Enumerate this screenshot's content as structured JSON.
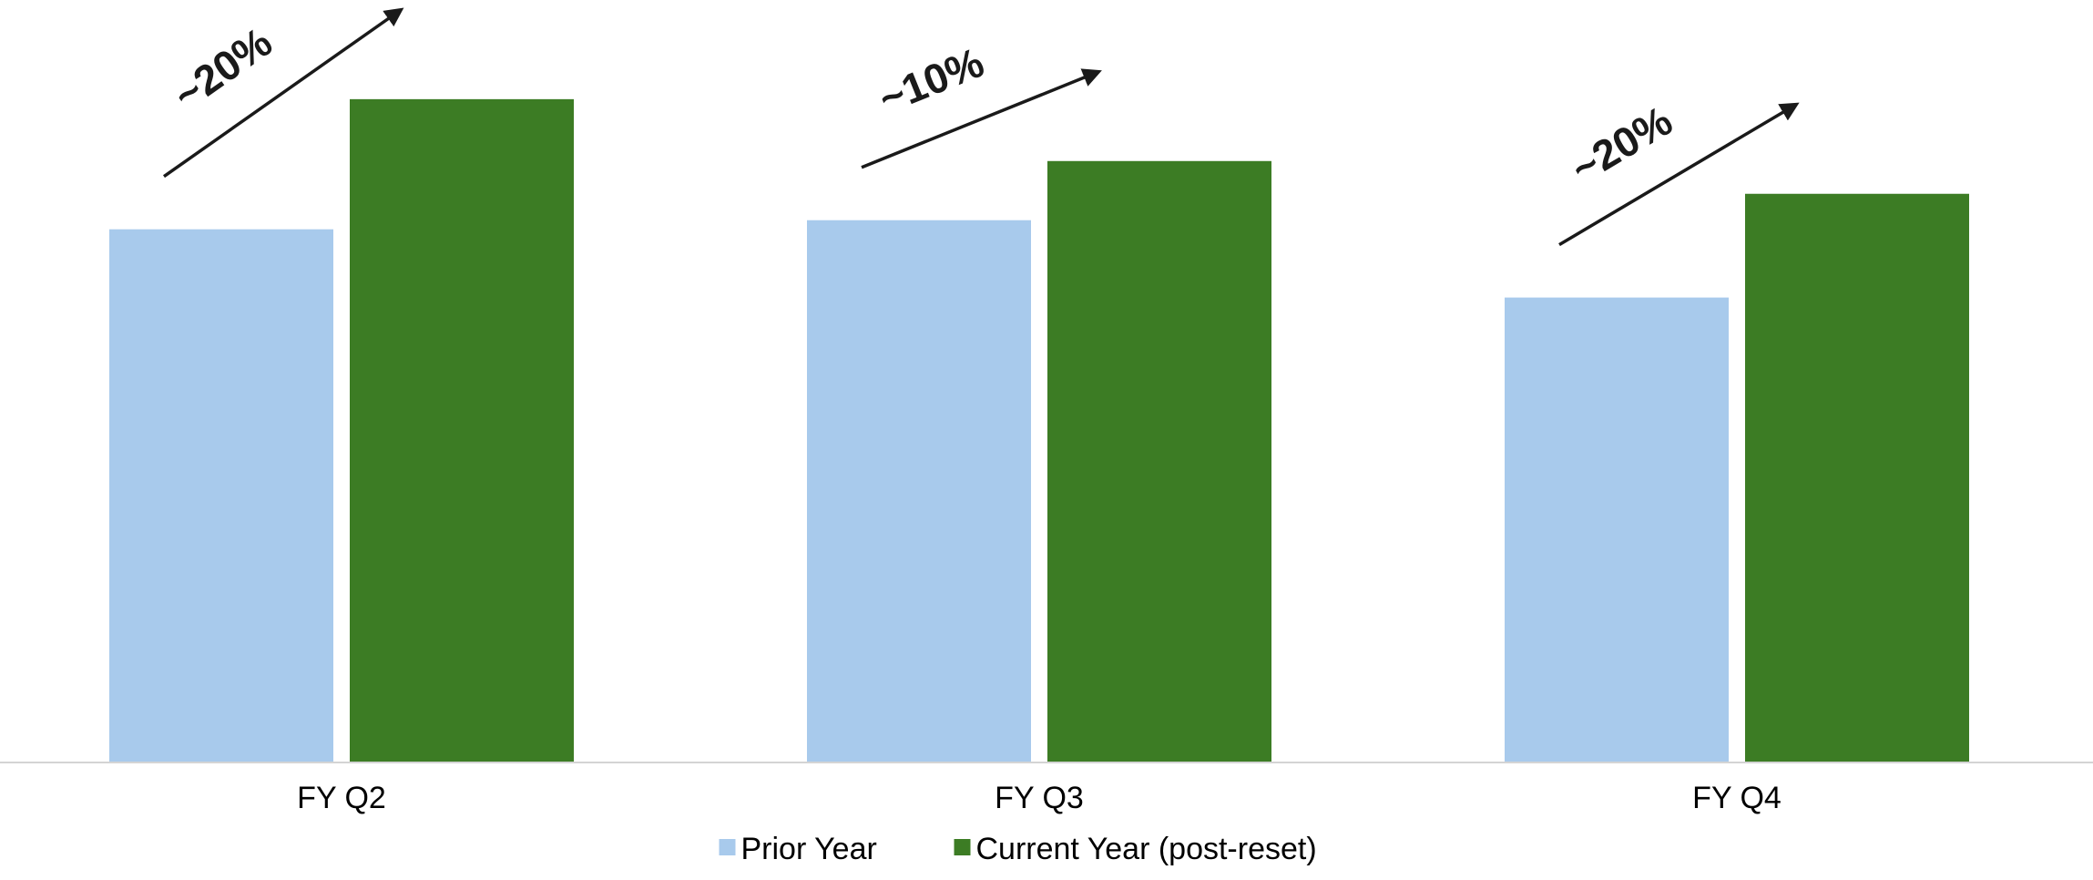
{
  "chart_data": {
    "type": "bar",
    "categories": [
      "FY Q2",
      "FY Q3",
      "FY Q4"
    ],
    "series": [
      {
        "name": "Prior Year",
        "color": "#a8caec",
        "values": [
          585,
          595,
          510
        ]
      },
      {
        "name": "Current Year (post-reset)",
        "color": "#3c7c24",
        "values": [
          728,
          660,
          624
        ]
      }
    ],
    "annotations": [
      {
        "category": "FY Q2",
        "label": "~20%"
      },
      {
        "category": "FY Q3",
        "label": "~10%"
      },
      {
        "category": "FY Q4",
        "label": "~20%"
      }
    ],
    "ylim": [
      0,
      837
    ],
    "grid": false,
    "y_axis_visible": false,
    "legend_position": "bottom-center"
  }
}
